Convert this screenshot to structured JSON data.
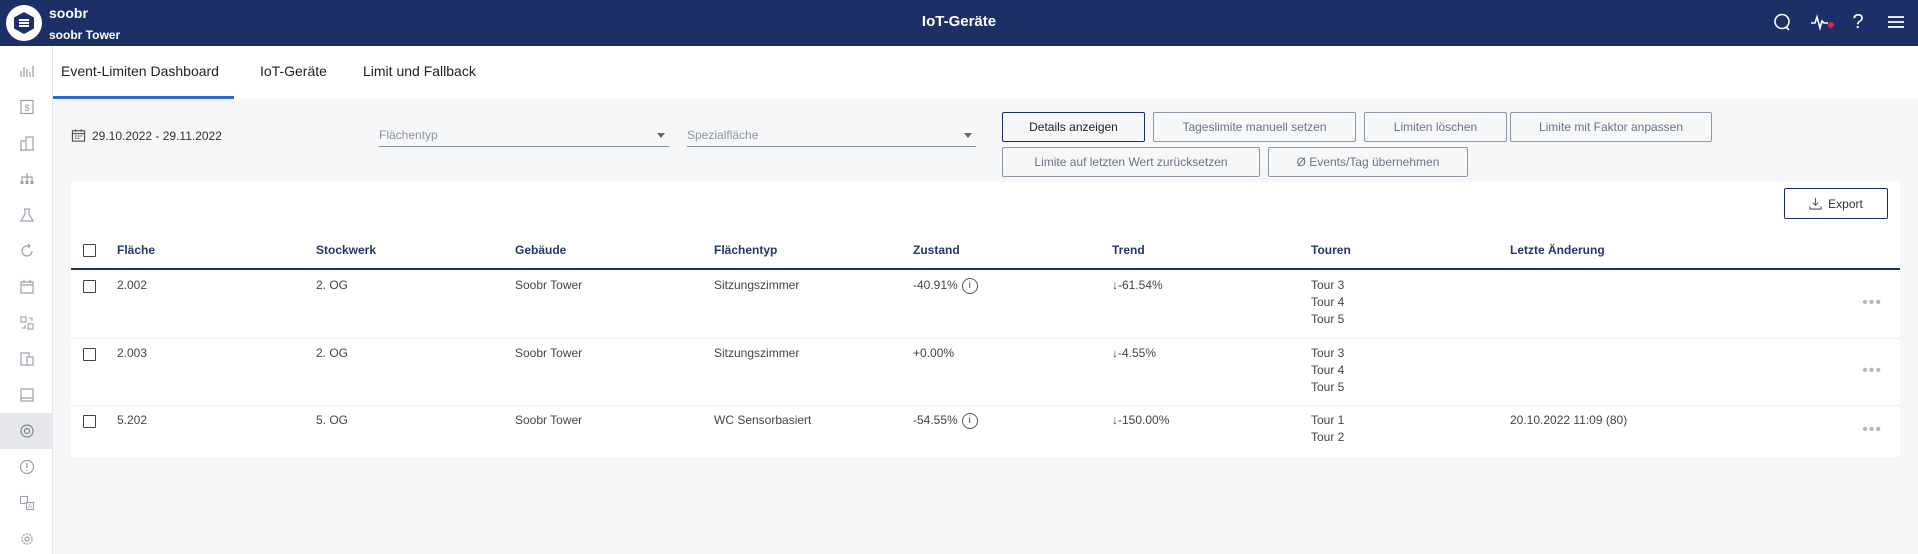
{
  "header": {
    "brand": "soobr",
    "brand_sub": "soobr Tower",
    "title": "IoT-Geräte",
    "icons": [
      "chat-icon",
      "activity-icon",
      "notification-dot",
      "help-icon",
      "menu-icon"
    ],
    "help_glyph": "?"
  },
  "sidebar": {
    "items": [
      {
        "icon": "bar-chart-icon"
      },
      {
        "icon": "dollar-icon"
      },
      {
        "icon": "buildings-icon"
      },
      {
        "icon": "hierarchy-icon"
      },
      {
        "icon": "flask-icon"
      },
      {
        "icon": "refresh-icon"
      },
      {
        "icon": "calendar-icon"
      },
      {
        "icon": "translate-icon"
      },
      {
        "icon": "documents-icon"
      },
      {
        "icon": "tablet-icon"
      },
      {
        "icon": "sensor-icon",
        "active": true
      },
      {
        "icon": "alert-icon"
      },
      {
        "icon": "language-icon"
      },
      {
        "icon": "settings-icon"
      }
    ]
  },
  "tabs": [
    {
      "label": "Event-Limiten Dashboard",
      "active": true
    },
    {
      "label": "IoT-Geräte"
    },
    {
      "label": "Limit und Fallback"
    }
  ],
  "filters": {
    "date_range": "29.10.2022 - 29.11.2022",
    "flaechentyp_placeholder": "Flächentyp",
    "spezialflaeche_placeholder": "Spezialfläche"
  },
  "actions": {
    "details": "Details anzeigen",
    "tageslimite": "Tageslimite manuell setzen",
    "limiten_loeschen": "Limiten löschen",
    "limite_faktor": "Limite mit Faktor anpassen",
    "limite_reset": "Limite auf letzten Wert zurücksetzen",
    "events_tag": "Ø Events/Tag übernehmen",
    "export": "Export"
  },
  "table": {
    "columns": [
      "Fläche",
      "Stockwerk",
      "Gebäude",
      "Flächentyp",
      "Zustand",
      "Trend",
      "Touren",
      "Letzte Änderung"
    ],
    "rows": [
      {
        "flaeche": "2.002",
        "stockwerk": "2. OG",
        "gebaeude": "Soobr Tower",
        "flaechentyp": "Sitzungszimmer",
        "zustand": "-40.91%",
        "zustand_info": true,
        "trend": "↓-61.54%",
        "touren": [
          "Tour 3",
          "Tour 4",
          "Tour 5"
        ],
        "letzte_aenderung": ""
      },
      {
        "flaeche": "2.003",
        "stockwerk": "2. OG",
        "gebaeude": "Soobr Tower",
        "flaechentyp": "Sitzungszimmer",
        "zustand": "+0.00%",
        "zustand_info": false,
        "trend": "↓-4.55%",
        "touren": [
          "Tour 3",
          "Tour 4",
          "Tour 5"
        ],
        "letzte_aenderung": ""
      },
      {
        "flaeche": "5.202",
        "stockwerk": "5. OG",
        "gebaeude": "Soobr Tower",
        "flaechentyp": "WC Sensorbasiert",
        "zustand": "-54.55%",
        "zustand_info": true,
        "trend": "↓-150.00%",
        "touren": [
          "Tour 1",
          "Tour 2"
        ],
        "letzte_aenderung": "20.10.2022 11:09 (80)"
      }
    ],
    "row_menu": "•••"
  }
}
